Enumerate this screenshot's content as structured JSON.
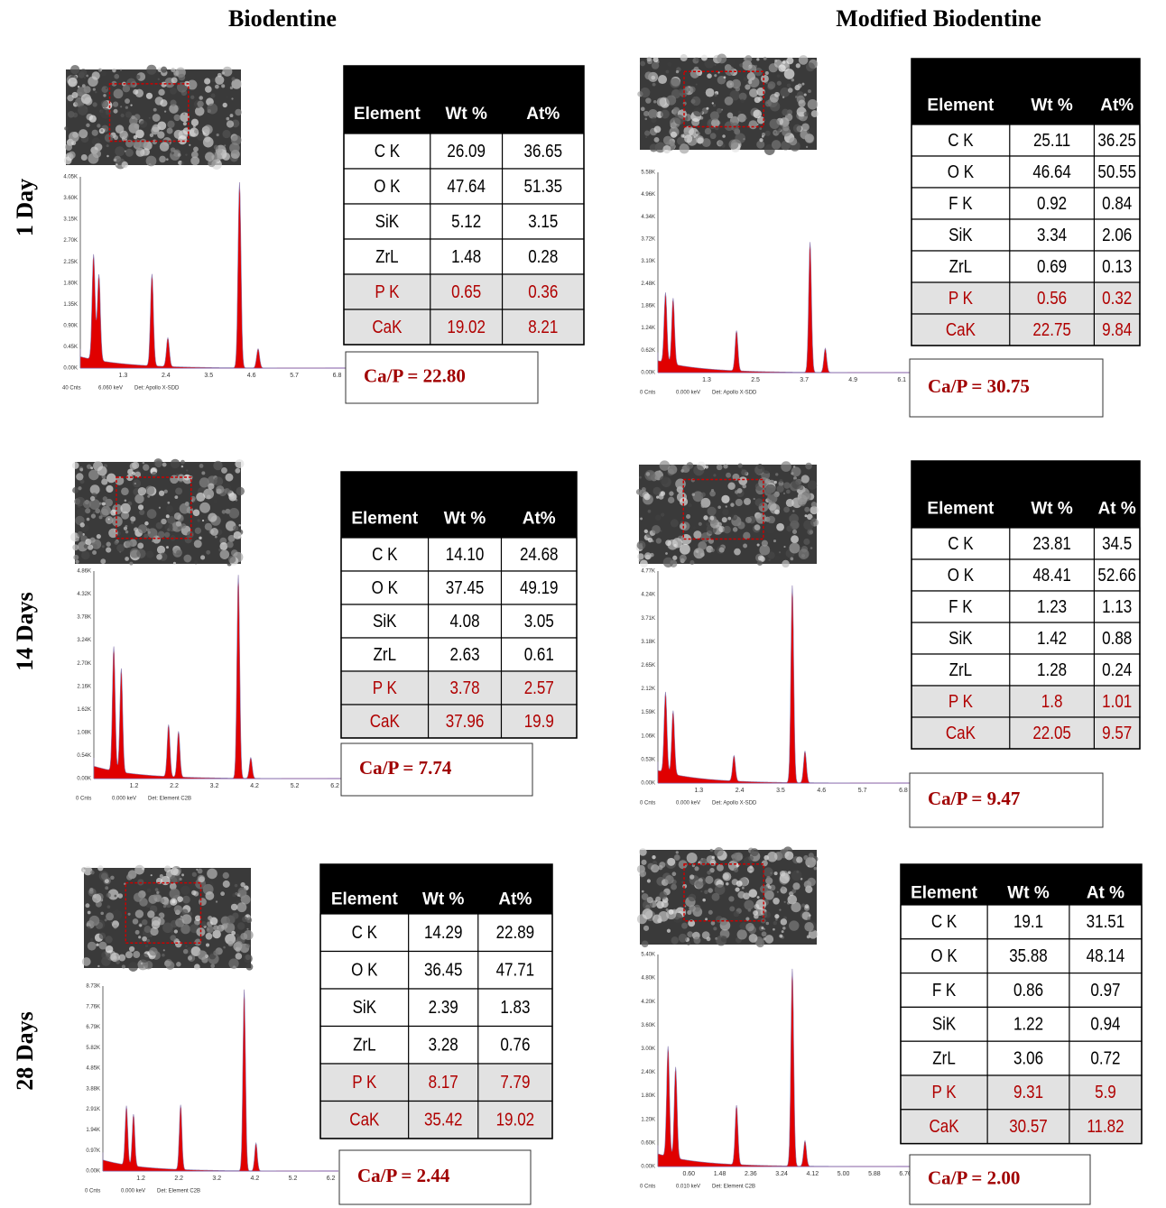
{
  "columns": [
    "Biodentine",
    "Modified Biodentine"
  ],
  "rows": [
    "1 Day",
    "14 Days",
    "28 Days"
  ],
  "panels": [
    {
      "table": {
        "header": [
          "Element",
          "Wt %",
          "At%"
        ],
        "rows": [
          [
            "C K",
            "26.09",
            "36.65"
          ],
          [
            "O K",
            "47.64",
            "51.35"
          ],
          [
            "SiK",
            "5.12",
            "3.15"
          ],
          [
            "ZrL",
            "1.48",
            "0.28"
          ],
          [
            "P K",
            "0.65",
            "0.36"
          ],
          [
            "CaK",
            "19.02",
            "8.21"
          ]
        ]
      },
      "ratio": "Ca/P = 22.80",
      "spectrum": {
        "yticks": [
          "4.05K",
          "3.60K",
          "3.15K",
          "2.70K",
          "2.25K",
          "1.80K",
          "1.35K",
          "0.90K",
          "0.45K",
          "0.00K"
        ],
        "xticks": [
          "1.3",
          "2.4",
          "3.5",
          "4.6",
          "5.7",
          "6.8"
        ],
        "footer": [
          "40 Cnts",
          "6.060 keV",
          "Det: Apollo X-SDD"
        ]
      }
    },
    {
      "table": {
        "header": [
          "Element",
          "Wt %",
          "At%"
        ],
        "rows": [
          [
            "C K",
            "25.11",
            "36.25"
          ],
          [
            "O K",
            "46.64",
            "50.55"
          ],
          [
            "F K",
            "0.92",
            "0.84"
          ],
          [
            "SiK",
            "3.34",
            "2.06"
          ],
          [
            "ZrL",
            "0.69",
            "0.13"
          ],
          [
            "P K",
            "0.56",
            "0.32"
          ],
          [
            "CaK",
            "22.75",
            "9.84"
          ]
        ]
      },
      "ratio": "Ca/P = 30.75",
      "spectrum": {
        "yticks": [
          "5.58K",
          "4.96K",
          "4.34K",
          "3.72K",
          "3.10K",
          "2.48K",
          "1.86K",
          "1.24K",
          "0.62K",
          "0.00K"
        ],
        "xticks": [
          "1.3",
          "2.5",
          "3.7",
          "4.9",
          "6.1"
        ],
        "footer": [
          "0 Cnts",
          "0.000 keV",
          "Det: Apollo X-SDD"
        ]
      }
    },
    {
      "table": {
        "header": [
          "Element",
          "Wt %",
          "At%"
        ],
        "rows": [
          [
            "C K",
            "14.10",
            "24.68"
          ],
          [
            "O K",
            "37.45",
            "49.19"
          ],
          [
            "SiK",
            "4.08",
            "3.05"
          ],
          [
            "ZrL",
            "2.63",
            "0.61"
          ],
          [
            "P K",
            "3.78",
            "2.57"
          ],
          [
            "CaK",
            "37.96",
            "19.9"
          ]
        ]
      },
      "ratio": "Ca/P = 7.74",
      "spectrum": {
        "yticks": [
          "4.86K",
          "4.32K",
          "3.78K",
          "3.24K",
          "2.70K",
          "2.16K",
          "1.62K",
          "1.08K",
          "0.54K",
          "0.00K"
        ],
        "xticks": [
          "1.2",
          "2.2",
          "3.2",
          "4.2",
          "5.2",
          "6.2"
        ],
        "footer": [
          "0 Cnts",
          "0.000 keV",
          "Det: Element C2B"
        ]
      }
    },
    {
      "table": {
        "header": [
          "Element",
          "Wt %",
          "At %"
        ],
        "rows": [
          [
            "C K",
            "23.81",
            "34.5"
          ],
          [
            "O K",
            "48.41",
            "52.66"
          ],
          [
            "F K",
            "1.23",
            "1.13"
          ],
          [
            "SiK",
            "1.42",
            "0.88"
          ],
          [
            "ZrL",
            "1.28",
            "0.24"
          ],
          [
            "P K",
            "1.8",
            "1.01"
          ],
          [
            "CaK",
            "22.05",
            "9.57"
          ]
        ]
      },
      "ratio": "Ca/P = 9.47",
      "spectrum": {
        "yticks": [
          "4.77K",
          "4.24K",
          "3.71K",
          "3.18K",
          "2.65K",
          "2.12K",
          "1.59K",
          "1.06K",
          "0.53K",
          "0.00K"
        ],
        "xticks": [
          "1.3",
          "2.4",
          "3.5",
          "4.6",
          "5.7",
          "6.8"
        ],
        "footer": [
          "0 Cnts",
          "0.000 keV",
          "Det: Apollo X-SDD"
        ]
      }
    },
    {
      "table": {
        "header": [
          "Element",
          "Wt %",
          "At%"
        ],
        "rows": [
          [
            "C K",
            "14.29",
            "22.89"
          ],
          [
            "O K",
            "36.45",
            "47.71"
          ],
          [
            "SiK",
            "2.39",
            "1.83"
          ],
          [
            "ZrL",
            "3.28",
            "0.76"
          ],
          [
            "P K",
            "8.17",
            "7.79"
          ],
          [
            "CaK",
            "35.42",
            "19.02"
          ]
        ]
      },
      "ratio": "Ca/P = 2.44",
      "spectrum": {
        "yticks": [
          "8.73K",
          "7.76K",
          "6.79K",
          "5.82K",
          "4.85K",
          "3.88K",
          "2.91K",
          "1.94K",
          "0.97K",
          "0.00K"
        ],
        "xticks": [
          "1.2",
          "2.2",
          "3.2",
          "4.2",
          "5.2",
          "6.2"
        ],
        "footer": [
          "0 Cnts",
          "0.000 keV",
          "Det: Element C2B"
        ]
      }
    },
    {
      "table": {
        "header": [
          "Element",
          "Wt %",
          "At %"
        ],
        "rows": [
          [
            "C K",
            "19.1",
            "31.51"
          ],
          [
            "O K",
            "35.88",
            "48.14"
          ],
          [
            "F K",
            "0.86",
            "0.97"
          ],
          [
            "SiK",
            "1.22",
            "0.94"
          ],
          [
            "ZrL",
            "3.06",
            "0.72"
          ],
          [
            "P K",
            "9.31",
            "5.9"
          ],
          [
            "CaK",
            "30.57",
            "11.82"
          ]
        ]
      },
      "ratio": "Ca/P = 2.00",
      "spectrum": {
        "yticks": [
          "5.40K",
          "4.80K",
          "4.20K",
          "3.60K",
          "3.00K",
          "2.40K",
          "1.80K",
          "1.20K",
          "0.60K",
          "0.00K"
        ],
        "xticks": [
          "0.60",
          "1.48",
          "2.36",
          "3.24",
          "4.12",
          "5.00",
          "5.88",
          "6.76"
        ],
        "footer": [
          "0 Cnts",
          "0.010 keV",
          "Det: Element C2B"
        ]
      }
    }
  ]
}
